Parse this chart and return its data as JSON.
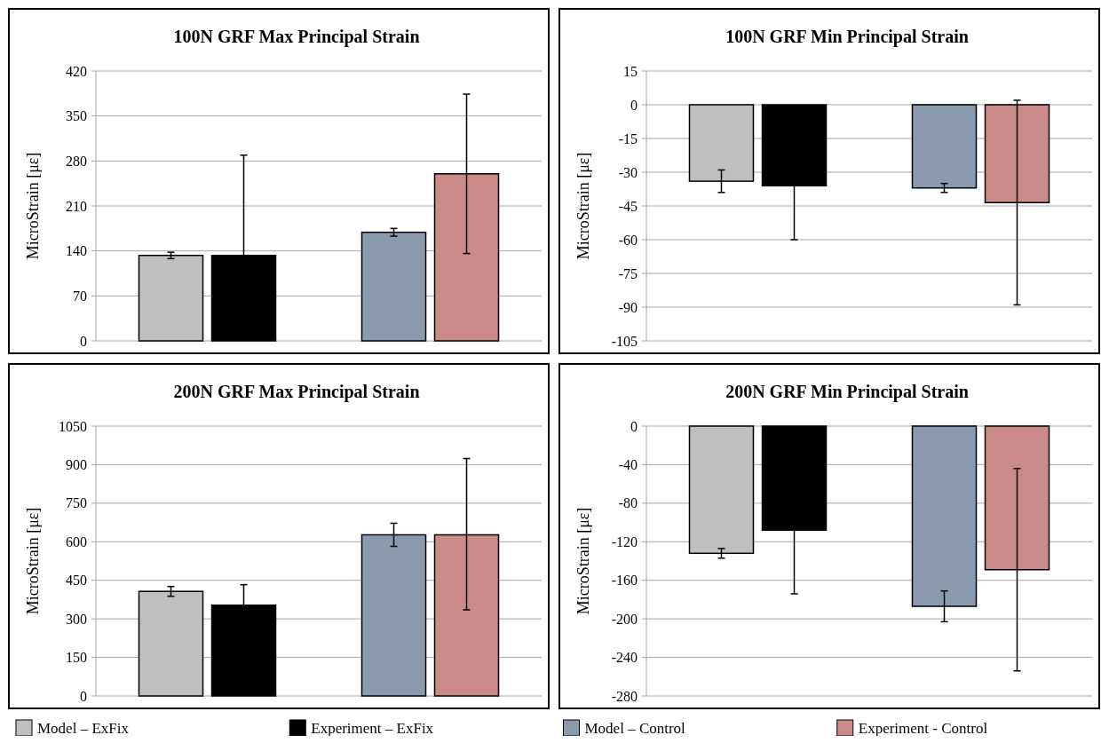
{
  "chart_data": [
    {
      "type": "bar",
      "title": "100N GRF Max Principal Strain",
      "ylabel": "MicroStrain [με]",
      "categories": [
        null,
        null
      ],
      "ylim": [
        0,
        420
      ],
      "yticks": [
        0,
        70,
        140,
        210,
        280,
        350,
        420
      ],
      "grid": "y",
      "legend": "bottom",
      "series": [
        {
          "name": "Model – ExFix",
          "color": "#bfbfbf",
          "values": [
            133,
            null
          ],
          "errors": [
            5,
            null
          ]
        },
        {
          "name": "Experiment – ExFix",
          "color": "#000000",
          "values": [
            133,
            null
          ],
          "errors": [
            [
              133,
              289
            ],
            null
          ]
        },
        {
          "name": "Model – Control",
          "color": "#8a9bb0",
          "values": [
            null,
            169
          ],
          "errors": [
            null,
            6
          ]
        },
        {
          "name": "Experiment - Control",
          "color": "#c98a88",
          "values": [
            null,
            260
          ],
          "errors": [
            null,
            124
          ]
        }
      ]
    },
    {
      "type": "bar",
      "title": "100N GRF Min Principal Strain",
      "ylabel": "MicroStrain [με]",
      "categories": [
        null,
        null
      ],
      "ylim": [
        -105,
        15
      ],
      "yticks": [
        -105,
        -90,
        -75,
        -60,
        -45,
        -30,
        -15,
        0,
        15
      ],
      "grid": "y",
      "series": [
        {
          "color": "#bfbfbf",
          "values": [
            -34,
            null
          ],
          "errors": [
            5,
            null
          ]
        },
        {
          "color": "#000000",
          "values": [
            -36,
            null
          ],
          "errors": [
            [
              -60,
              -36
            ],
            null
          ]
        },
        {
          "color": "#8a9bb0",
          "values": [
            null,
            -37
          ],
          "errors": [
            null,
            2
          ]
        },
        {
          "color": "#c98a88",
          "values": [
            null,
            -43.5
          ],
          "errors": [
            null,
            [
              -89,
              2
            ]
          ]
        }
      ]
    },
    {
      "type": "bar",
      "title": "200N GRF Max Principal Strain",
      "ylabel": "MicroStrain [με]",
      "categories": [
        null,
        null
      ],
      "ylim": [
        0,
        1050
      ],
      "yticks": [
        0,
        150,
        300,
        450,
        600,
        750,
        900,
        1050
      ],
      "grid": "y",
      "series": [
        {
          "color": "#bfbfbf",
          "values": [
            407,
            null
          ],
          "errors": [
            19,
            null
          ]
        },
        {
          "color": "#000000",
          "values": [
            353,
            null
          ],
          "errors": [
            [
              353,
              433
            ],
            null
          ]
        },
        {
          "color": "#8a9bb0",
          "values": [
            null,
            627
          ],
          "errors": [
            null,
            45
          ]
        },
        {
          "color": "#c98a88",
          "values": [
            null,
            627
          ],
          "errors": [
            null,
            [
              335,
              924
            ]
          ]
        }
      ]
    },
    {
      "type": "bar",
      "title": "200N GRF Min Principal Strain",
      "ylabel": "MicroStrain [με]",
      "categories": [
        null,
        null
      ],
      "ylim": [
        -280,
        0
      ],
      "yticks": [
        -280,
        -240,
        -200,
        -160,
        -120,
        -80,
        -40,
        0
      ],
      "grid": "y",
      "series": [
        {
          "color": "#bfbfbf",
          "values": [
            -132,
            null
          ],
          "errors": [
            5,
            null
          ]
        },
        {
          "color": "#000000",
          "values": [
            -108,
            null
          ],
          "errors": [
            [
              -174,
              -108
            ],
            null
          ]
        },
        {
          "color": "#8a9bb0",
          "values": [
            null,
            -187
          ],
          "errors": [
            null,
            16
          ]
        },
        {
          "color": "#c98a88",
          "values": [
            null,
            -149
          ],
          "errors": [
            null,
            [
              -254,
              -44
            ]
          ]
        }
      ]
    }
  ]
}
